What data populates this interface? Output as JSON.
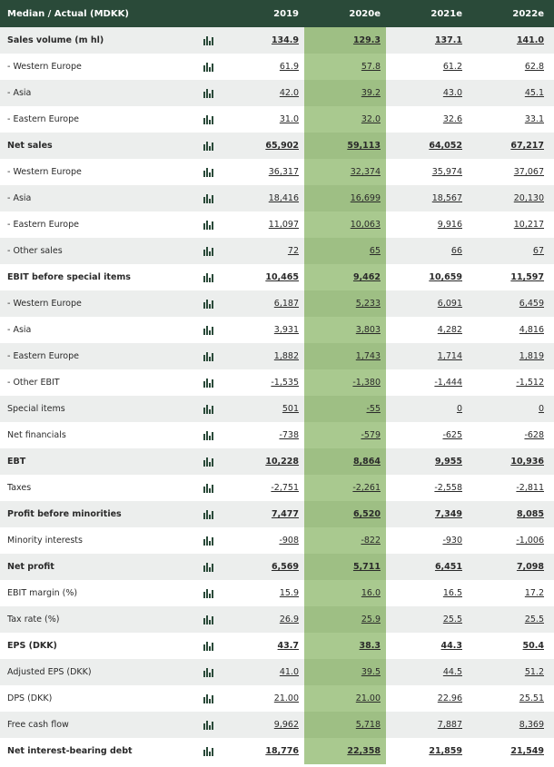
{
  "table": {
    "header": [
      "Median / Actual (MDKK)",
      "2019",
      "2020e",
      "2021e",
      "2022e"
    ],
    "rows": [
      {
        "cells": [
          "Sales volume (m hl)",
          "134.9",
          "129.3",
          "137.1",
          "141.0"
        ],
        "bold": true
      },
      {
        "cells": [
          "- Western Europe",
          "61.9",
          "57.8",
          "61.2",
          "62.8"
        ],
        "bold": false
      },
      {
        "cells": [
          "- Asia",
          "42.0",
          "39.2",
          "43.0",
          "45.1"
        ],
        "bold": false
      },
      {
        "cells": [
          "- Eastern Europe",
          "31.0",
          "32.0",
          "32.6",
          "33.1"
        ],
        "bold": false
      },
      {
        "cells": [
          "Net sales",
          "65,902",
          "59,113",
          "64,052",
          "67,217"
        ],
        "bold": true
      },
      {
        "cells": [
          "- Western Europe",
          "36,317",
          "32,374",
          "35,974",
          "37,067"
        ],
        "bold": false
      },
      {
        "cells": [
          "- Asia",
          "18,416",
          "16,699",
          "18,567",
          "20,130"
        ],
        "bold": false
      },
      {
        "cells": [
          "- Eastern Europe",
          "11,097",
          "10,063",
          "9,916",
          "10,217"
        ],
        "bold": false
      },
      {
        "cells": [
          "- Other sales",
          "72",
          "65",
          "66",
          "67"
        ],
        "bold": false
      },
      {
        "cells": [
          "EBIT before special items",
          "10,465",
          "9,462",
          "10,659",
          "11,597"
        ],
        "bold": true
      },
      {
        "cells": [
          "- Western Europe",
          "6,187",
          "5,233",
          "6,091",
          "6,459"
        ],
        "bold": false
      },
      {
        "cells": [
          "- Asia",
          "3,931",
          "3,803",
          "4,282",
          "4,816"
        ],
        "bold": false
      },
      {
        "cells": [
          "- Eastern Europe",
          "1,882",
          "1,743",
          "1,714",
          "1,819"
        ],
        "bold": false
      },
      {
        "cells": [
          "- Other EBIT",
          "-1,535",
          "-1,380",
          "-1,444",
          "-1,512"
        ],
        "bold": false
      },
      {
        "cells": [
          "Special items",
          "501",
          "-55",
          "0",
          "0"
        ],
        "bold": false
      },
      {
        "cells": [
          "Net financials",
          "-738",
          "-579",
          "-625",
          "-628"
        ],
        "bold": false
      },
      {
        "cells": [
          "EBT",
          "10,228",
          "8,864",
          "9,955",
          "10,936"
        ],
        "bold": true
      },
      {
        "cells": [
          "Taxes",
          "-2,751",
          "-2,261",
          "-2,558",
          "-2,811"
        ],
        "bold": false
      },
      {
        "cells": [
          "Profit before minorities",
          "7,477",
          "6,520",
          "7,349",
          "8,085"
        ],
        "bold": true
      },
      {
        "cells": [
          "Minority interests",
          "-908",
          "-822",
          "-930",
          "-1,006"
        ],
        "bold": false
      },
      {
        "cells": [
          "Net profit",
          "6,569",
          "5,711",
          "6,451",
          "7,098"
        ],
        "bold": true
      },
      {
        "cells": [
          "EBIT margin (%)",
          "15.9",
          "16.0",
          "16.5",
          "17.2"
        ],
        "bold": false
      },
      {
        "cells": [
          "Tax rate (%)",
          "26.9",
          "25.9",
          "25.5",
          "25.5"
        ],
        "bold": false
      },
      {
        "cells": [
          "EPS (DKK)",
          "43.7",
          "38.3",
          "44.3",
          "50.4"
        ],
        "bold": true
      },
      {
        "cells": [
          "Adjusted EPS (DKK)",
          "41.0",
          "39.5",
          "44.5",
          "51.2"
        ],
        "bold": false
      },
      {
        "cells": [
          "DPS (DKK)",
          "21.00",
          "21.00",
          "22.96",
          "25.51"
        ],
        "bold": false
      },
      {
        "cells": [
          "Free cash flow",
          "9,962",
          "5,718",
          "7,887",
          "8,369"
        ],
        "bold": false
      },
      {
        "cells": [
          "Net interest-bearing debt",
          "18,776",
          "22,358",
          "21,859",
          "21,549"
        ],
        "bold": true
      }
    ]
  }
}
